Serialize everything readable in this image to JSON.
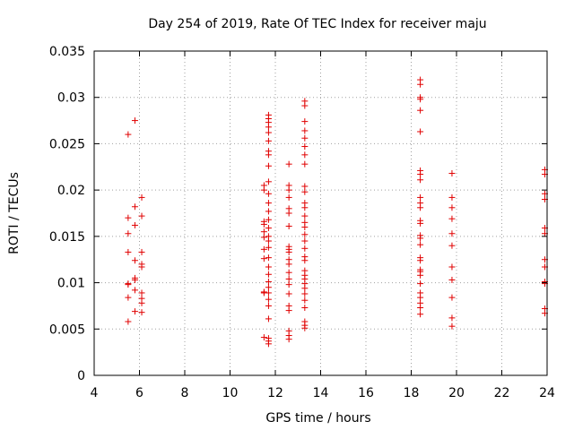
{
  "chart_data": {
    "type": "scatter",
    "title": "Day 254 of 2019, Rate Of TEC Index for receiver maju",
    "xlabel": "GPS time / hours",
    "ylabel": "ROTI / TECUs",
    "xlim": [
      4,
      24
    ],
    "ylim": [
      0,
      0.035
    ],
    "xticks": [
      4,
      6,
      8,
      10,
      12,
      14,
      16,
      18,
      20,
      22,
      24
    ],
    "xtick_labels": [
      "4",
      "6",
      "8",
      "10",
      "12",
      "14",
      "16",
      "18",
      "20",
      "22",
      "24"
    ],
    "yticks": [
      0,
      0.005,
      0.01,
      0.015,
      0.02,
      0.025,
      0.03,
      0.035
    ],
    "ytick_labels": [
      "0",
      "0.005",
      "0.01",
      "0.015",
      "0.02",
      "0.025",
      "0.03",
      "0.035"
    ],
    "grid": true,
    "marker": "+",
    "color": "#e00000",
    "series": [
      {
        "name": "ROTI",
        "x": [
          5.5,
          5.5,
          5.5,
          5.5,
          5.5,
          5.5,
          5.5,
          5.5,
          5.8,
          5.8,
          5.8,
          5.8,
          5.8,
          5.8,
          5.8,
          5.8,
          6.1,
          6.1,
          6.1,
          6.1,
          6.1,
          6.1,
          6.1,
          6.1,
          6.1,
          11.5,
          11.5,
          11.5,
          11.5,
          11.5,
          11.5,
          11.5,
          11.5,
          11.5,
          11.5,
          11.5,
          11.7,
          11.7,
          11.7,
          11.7,
          11.7,
          11.7,
          11.7,
          11.7,
          11.7,
          11.7,
          11.7,
          11.7,
          11.7,
          11.7,
          11.7,
          11.7,
          11.7,
          11.7,
          11.7,
          11.7,
          11.7,
          11.7,
          11.7,
          11.7,
          11.7,
          11.7,
          11.7,
          11.7,
          11.7,
          11.7,
          12.6,
          12.6,
          12.6,
          12.6,
          12.6,
          12.6,
          12.6,
          12.6,
          12.6,
          12.6,
          12.6,
          12.6,
          12.6,
          12.6,
          12.6,
          12.6,
          12.6,
          12.6,
          12.6,
          12.6,
          12.6,
          13.3,
          13.3,
          13.3,
          13.3,
          13.3,
          13.3,
          13.3,
          13.3,
          13.3,
          13.3,
          13.3,
          13.3,
          13.3,
          13.3,
          13.3,
          13.3,
          13.3,
          13.3,
          13.3,
          13.3,
          13.3,
          13.3,
          13.3,
          13.3,
          13.3,
          13.3,
          13.3,
          13.3,
          13.3,
          13.3,
          13.3,
          18.4,
          18.4,
          18.4,
          18.4,
          18.4,
          18.4,
          18.4,
          18.4,
          18.4,
          18.4,
          18.4,
          18.4,
          18.4,
          18.4,
          18.4,
          18.4,
          18.4,
          18.4,
          18.4,
          18.4,
          18.4,
          18.4,
          18.4,
          18.4,
          18.4,
          18.4,
          18.4,
          18.4,
          19.8,
          19.8,
          19.8,
          19.8,
          19.8,
          19.8,
          19.8,
          19.8,
          19.8,
          19.8,
          19.8,
          23.9,
          23.9,
          23.9,
          23.9,
          23.9,
          23.9,
          23.9,
          23.9,
          23.9,
          23.9,
          23.9,
          23.9
        ],
        "y": [
          0.026,
          0.017,
          0.0153,
          0.0133,
          0.0099,
          0.0098,
          0.0084,
          0.0058,
          0.0275,
          0.0182,
          0.0162,
          0.0124,
          0.0105,
          0.0103,
          0.0092,
          0.0069,
          0.0192,
          0.0172,
          0.0133,
          0.012,
          0.0117,
          0.0089,
          0.0083,
          0.0078,
          0.0068,
          0.0205,
          0.02,
          0.0166,
          0.0163,
          0.0155,
          0.0149,
          0.0136,
          0.0126,
          0.009,
          0.0089,
          0.0041,
          0.0281,
          0.0277,
          0.0273,
          0.0268,
          0.0262,
          0.0253,
          0.0242,
          0.0238,
          0.0226,
          0.0209,
          0.0196,
          0.0186,
          0.0177,
          0.0168,
          0.0159,
          0.015,
          0.0145,
          0.0138,
          0.0127,
          0.0117,
          0.0109,
          0.0101,
          0.0095,
          0.0089,
          0.0082,
          0.0075,
          0.0061,
          0.004,
          0.0037,
          0.0034,
          0.0228,
          0.0205,
          0.02,
          0.0192,
          0.018,
          0.0175,
          0.0161,
          0.0139,
          0.0133,
          0.0125,
          0.012,
          0.0111,
          0.0104,
          0.0098,
          0.0088,
          0.0075,
          0.007,
          0.0048,
          0.0043,
          0.0039,
          0.0136,
          0.0296,
          0.0291,
          0.0274,
          0.0264,
          0.0256,
          0.0247,
          0.0238,
          0.0228,
          0.0204,
          0.0198,
          0.0186,
          0.0181,
          0.0172,
          0.0165,
          0.016,
          0.0152,
          0.0145,
          0.0137,
          0.0128,
          0.0124,
          0.0113,
          0.0108,
          0.0104,
          0.0099,
          0.0094,
          0.0088,
          0.0081,
          0.0073,
          0.0058,
          0.0054,
          0.0051,
          0.0319,
          0.0314,
          0.03,
          0.0298,
          0.0286,
          0.0263,
          0.0221,
          0.0217,
          0.0211,
          0.0192,
          0.0186,
          0.0181,
          0.0167,
          0.0164,
          0.0151,
          0.0148,
          0.0141,
          0.0127,
          0.0124,
          0.0114,
          0.0108,
          0.0099,
          0.0089,
          0.0084,
          0.0078,
          0.0073,
          0.0066,
          0.0112,
          0.0218,
          0.0192,
          0.0181,
          0.0169,
          0.0153,
          0.014,
          0.0117,
          0.0103,
          0.0084,
          0.0062,
          0.0053,
          0.0222,
          0.0217,
          0.0196,
          0.019,
          0.0159,
          0.0153,
          0.0125,
          0.0117,
          0.0101,
          0.0099,
          0.0072,
          0.0067
        ]
      }
    ]
  }
}
